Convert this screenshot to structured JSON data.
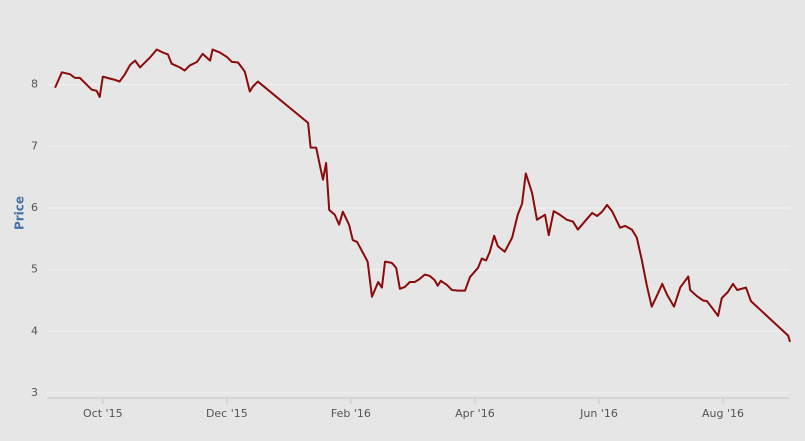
{
  "chart_data": {
    "type": "line",
    "y_label": "Price",
    "x": [
      0.23,
      0.34,
      0.47,
      0.55,
      0.63,
      0.74,
      0.82,
      0.9,
      0.95,
      1.0,
      1.11,
      1.19,
      1.27,
      1.35,
      1.44,
      1.52,
      1.6,
      1.68,
      1.76,
      1.87,
      1.97,
      2.05,
      2.11,
      2.24,
      2.32,
      2.4,
      2.52,
      2.61,
      2.73,
      2.77,
      2.89,
      3.0,
      3.08,
      3.18,
      3.24,
      3.29,
      3.37,
      3.42,
      3.5,
      4.31,
      4.35,
      4.44,
      4.5,
      4.55,
      4.6,
      4.65,
      4.74,
      4.81,
      4.87,
      4.97,
      5.03,
      5.1,
      5.27,
      5.34,
      5.44,
      5.5,
      5.55,
      5.66,
      5.73,
      5.79,
      5.87,
      5.95,
      6.03,
      6.11,
      6.19,
      6.27,
      6.35,
      6.4,
      6.45,
      6.55,
      6.63,
      6.73,
      6.84,
      6.92,
      7.05,
      7.11,
      7.18,
      7.24,
      7.31,
      7.37,
      7.48,
      7.6,
      7.69,
      7.76,
      7.82,
      7.92,
      8.0,
      8.13,
      8.19,
      8.27,
      8.37,
      8.48,
      8.58,
      8.66,
      8.77,
      8.89,
      8.97,
      9.05,
      9.13,
      9.21,
      9.34,
      9.42,
      9.53,
      9.61,
      9.69,
      9.77,
      9.85,
      9.94,
      10.02,
      10.1,
      10.21,
      10.31,
      10.44,
      10.47,
      10.58,
      10.68,
      10.74,
      10.84,
      10.92,
      10.98,
      11.08,
      11.16,
      11.23,
      11.37,
      11.45,
      12.05,
      12.08
    ],
    "series": [
      {
        "name": "Price",
        "color": "#8b0a0a",
        "values": [
          7.95,
          8.2,
          8.17,
          8.11,
          8.11,
          8.0,
          7.92,
          7.9,
          7.8,
          8.13,
          8.1,
          8.08,
          8.05,
          8.16,
          8.32,
          8.39,
          8.28,
          8.36,
          8.44,
          8.57,
          8.52,
          8.49,
          8.34,
          8.28,
          8.23,
          8.31,
          8.37,
          8.5,
          8.39,
          8.57,
          8.52,
          8.45,
          8.37,
          8.36,
          8.28,
          8.21,
          7.89,
          7.97,
          8.05,
          7.38,
          6.98,
          6.98,
          6.69,
          6.46,
          6.73,
          5.97,
          5.89,
          5.73,
          5.94,
          5.73,
          5.48,
          5.45,
          5.13,
          4.56,
          4.8,
          4.71,
          5.13,
          5.11,
          5.03,
          4.69,
          4.72,
          4.8,
          4.8,
          4.85,
          4.92,
          4.9,
          4.83,
          4.74,
          4.82,
          4.75,
          4.67,
          4.66,
          4.66,
          4.88,
          5.03,
          5.18,
          5.15,
          5.29,
          5.55,
          5.38,
          5.29,
          5.52,
          5.89,
          6.07,
          6.56,
          6.25,
          5.81,
          5.89,
          5.56,
          5.95,
          5.89,
          5.81,
          5.78,
          5.65,
          5.78,
          5.92,
          5.87,
          5.94,
          6.05,
          5.95,
          5.68,
          5.71,
          5.65,
          5.52,
          5.16,
          4.75,
          4.4,
          4.59,
          4.77,
          4.59,
          4.4,
          4.71,
          4.89,
          4.67,
          4.57,
          4.5,
          4.49,
          4.36,
          4.25,
          4.54,
          4.64,
          4.77,
          4.67,
          4.71,
          4.49,
          3.93,
          3.83
        ]
      }
    ],
    "xlim": [
      0.1,
      12.08
    ],
    "xticks": [
      {
        "value": 1,
        "label": "Oct '15"
      },
      {
        "value": 3,
        "label": "Dec '15"
      },
      {
        "value": 5,
        "label": "Feb '16"
      },
      {
        "value": 7,
        "label": "Apr '16"
      },
      {
        "value": 9,
        "label": "Jun '16"
      },
      {
        "value": 11,
        "label": "Aug '16"
      }
    ],
    "ylim": [
      3,
      9
    ],
    "yticks": [
      3,
      4,
      5,
      6,
      7,
      8
    ],
    "grid": true,
    "legend": false
  }
}
